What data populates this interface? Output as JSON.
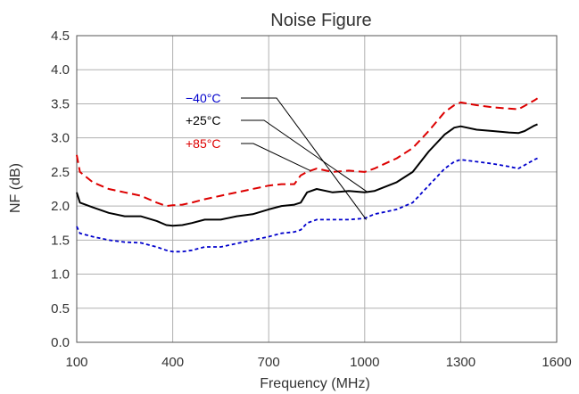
{
  "chart_data": {
    "type": "line",
    "title": "Noise Figure",
    "xlabel": "Frequency (MHz)",
    "ylabel": "NF (dB)",
    "xlim": [
      100,
      1600
    ],
    "ylim": [
      0.0,
      4.5
    ],
    "xticks": [
      100,
      400,
      700,
      1000,
      1300,
      1600
    ],
    "xtick_labels": [
      "100",
      "400",
      "700",
      "1000",
      "1300",
      "1600"
    ],
    "yticks": [
      0.0,
      0.5,
      1.0,
      1.5,
      2.0,
      2.5,
      3.0,
      3.5,
      4.0,
      4.5
    ],
    "ytick_labels": [
      "0.0",
      "0.5",
      "1.0",
      "1.5",
      "2.0",
      "2.5",
      "3.0",
      "3.5",
      "4.0",
      "4.5"
    ],
    "grid": true,
    "legend_placement": "inside, upper-left with leader lines to curves",
    "series": [
      {
        "name": "−40°C",
        "color": "#0000cc",
        "dash": "short-dash",
        "x": [
          100,
          110,
          150,
          200,
          250,
          300,
          350,
          380,
          400,
          430,
          460,
          500,
          550,
          600,
          650,
          700,
          740,
          780,
          800,
          820,
          850,
          900,
          950,
          1000,
          1030,
          1100,
          1150,
          1200,
          1250,
          1280,
          1300,
          1350,
          1400,
          1450,
          1480,
          1500,
          1530,
          1540
        ],
        "y": [
          1.7,
          1.6,
          1.55,
          1.5,
          1.47,
          1.46,
          1.4,
          1.35,
          1.33,
          1.33,
          1.35,
          1.4,
          1.4,
          1.45,
          1.5,
          1.55,
          1.6,
          1.62,
          1.65,
          1.75,
          1.8,
          1.8,
          1.8,
          1.82,
          1.88,
          1.95,
          2.05,
          2.3,
          2.55,
          2.65,
          2.68,
          2.65,
          2.62,
          2.58,
          2.55,
          2.6,
          2.68,
          2.7
        ]
      },
      {
        "name": "+25°C",
        "color": "#000000",
        "dash": "solid",
        "x": [
          100,
          110,
          150,
          200,
          250,
          300,
          350,
          380,
          400,
          430,
          460,
          500,
          550,
          600,
          650,
          700,
          740,
          780,
          800,
          820,
          850,
          900,
          950,
          1000,
          1030,
          1100,
          1150,
          1200,
          1250,
          1280,
          1300,
          1350,
          1400,
          1450,
          1480,
          1500,
          1530,
          1540
        ],
        "y": [
          2.2,
          2.05,
          1.98,
          1.9,
          1.85,
          1.85,
          1.78,
          1.72,
          1.71,
          1.72,
          1.75,
          1.8,
          1.8,
          1.85,
          1.88,
          1.95,
          2.0,
          2.02,
          2.05,
          2.2,
          2.25,
          2.2,
          2.22,
          2.2,
          2.22,
          2.35,
          2.5,
          2.8,
          3.05,
          3.15,
          3.17,
          3.12,
          3.1,
          3.08,
          3.07,
          3.1,
          3.18,
          3.2
        ]
      },
      {
        "name": "+85°C",
        "color": "#dd0000",
        "dash": "long-dash",
        "x": [
          100,
          110,
          150,
          200,
          250,
          300,
          350,
          380,
          400,
          430,
          460,
          500,
          550,
          600,
          650,
          700,
          740,
          780,
          800,
          820,
          850,
          900,
          950,
          1000,
          1030,
          1100,
          1150,
          1200,
          1250,
          1280,
          1300,
          1350,
          1400,
          1450,
          1480,
          1500,
          1530,
          1540
        ],
        "y": [
          2.75,
          2.5,
          2.35,
          2.25,
          2.2,
          2.15,
          2.05,
          2.0,
          2.01,
          2.02,
          2.05,
          2.1,
          2.15,
          2.2,
          2.25,
          2.3,
          2.32,
          2.32,
          2.45,
          2.5,
          2.55,
          2.5,
          2.52,
          2.5,
          2.55,
          2.7,
          2.85,
          3.1,
          3.38,
          3.48,
          3.52,
          3.48,
          3.45,
          3.43,
          3.42,
          3.47,
          3.55,
          3.58
        ]
      }
    ]
  }
}
